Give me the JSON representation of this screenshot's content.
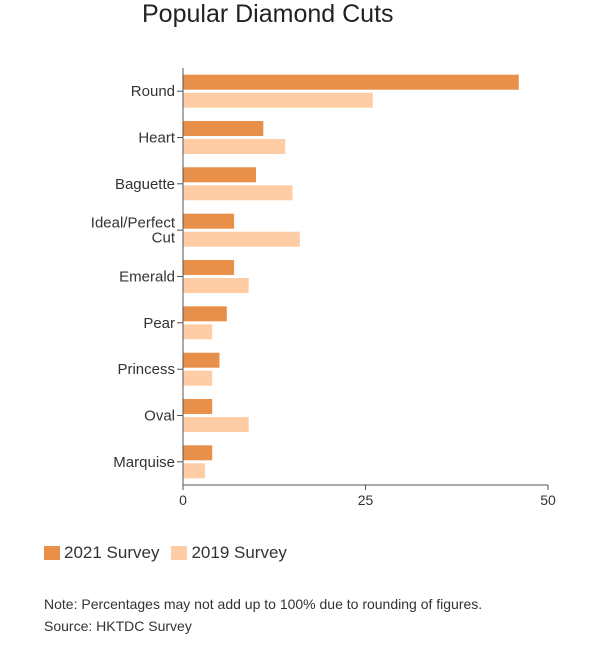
{
  "chart_data": {
    "type": "bar",
    "orientation": "horizontal",
    "title": "Popular Diamond Cuts",
    "categories": [
      "Round",
      "Heart",
      "Baguette",
      "Ideal/Perfect Cut",
      "Emerald",
      "Pear",
      "Princess",
      "Oval",
      "Marquise"
    ],
    "category_lines": [
      [
        "Round"
      ],
      [
        "Heart"
      ],
      [
        "Baguette"
      ],
      [
        "Ideal/Perfect",
        "Cut"
      ],
      [
        "Emerald"
      ],
      [
        "Pear"
      ],
      [
        "Princess"
      ],
      [
        "Oval"
      ],
      [
        "Marquise"
      ]
    ],
    "series": [
      {
        "name": "2021 Survey",
        "color": "#E8904A",
        "values": [
          46,
          11,
          10,
          7,
          7,
          6,
          5,
          4,
          4
        ]
      },
      {
        "name": "2019 Survey",
        "color": "#FECCA5",
        "values": [
          26,
          14,
          15,
          16,
          9,
          4,
          4,
          9,
          3
        ]
      }
    ],
    "xlim": [
      0,
      50
    ],
    "xticks": [
      0,
      25,
      50
    ],
    "grid": false,
    "legend_position": "bottom-left"
  },
  "footer": {
    "note": "Note: Percentages may not add up to 100% due to rounding of figures.",
    "source": "Source: HKTDC Survey"
  }
}
